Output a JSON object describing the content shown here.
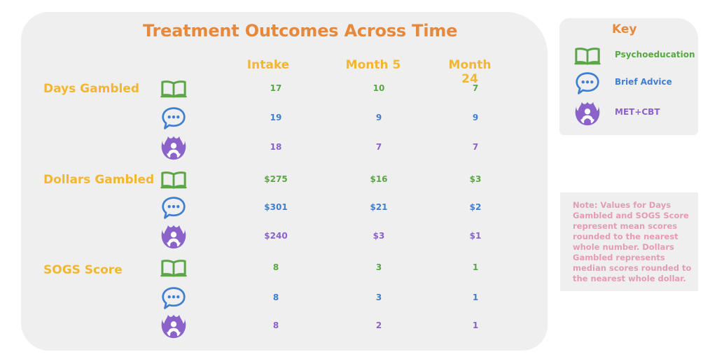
{
  "chart_data": {
    "type": "table",
    "title": "Treatment Outcomes Across Time",
    "columns": [
      "Intake",
      "Month 5",
      "Month 24"
    ],
    "metrics": [
      {
        "name": "Days Gambled",
        "rows": [
          {
            "group": "Psychoeducation",
            "values": [
              "17",
              "10",
              "7"
            ]
          },
          {
            "group": "Brief Advice",
            "values": [
              "19",
              "9",
              "9"
            ]
          },
          {
            "group": "MET+CBT",
            "values": [
              "18",
              "7",
              "7"
            ]
          }
        ]
      },
      {
        "name": "Dollars Gambled",
        "rows": [
          {
            "group": "Psychoeducation",
            "values": [
              "$275",
              "$16",
              "$3"
            ]
          },
          {
            "group": "Brief Advice",
            "values": [
              "$301",
              "$21",
              "$2"
            ]
          },
          {
            "group": "MET+CBT",
            "values": [
              "$240",
              "$3",
              "$1"
            ]
          }
        ]
      },
      {
        "name": "SOGS Score",
        "rows": [
          {
            "group": "Psychoeducation",
            "values": [
              "8",
              "3",
              "1"
            ]
          },
          {
            "group": "Brief Advice",
            "values": [
              "8",
              "3",
              "1"
            ]
          },
          {
            "group": "MET+CBT",
            "values": [
              "8",
              "2",
              "1"
            ]
          }
        ]
      }
    ],
    "legend": {
      "title": "Key",
      "items": [
        {
          "label": "Psychoeducation",
          "icon": "open-book-icon",
          "color": "#5aa645"
        },
        {
          "label": "Brief Advice",
          "icon": "speech-bubble-icon",
          "color": "#3f7fd0"
        },
        {
          "label": "MET+CBT",
          "icon": "flame-person-icon",
          "color": "#8a62c9"
        }
      ]
    },
    "note": "Note: Values for Days Gambled and SOGS Score represent mean scores rounded to the nearest whole number.  Dollars Gambled represents median scores rounded to the nearest whole dollar."
  },
  "colors": {
    "title": "#e8883a",
    "header": "#f2b731",
    "note": "#e49bb4",
    "panel": "#efefef"
  }
}
